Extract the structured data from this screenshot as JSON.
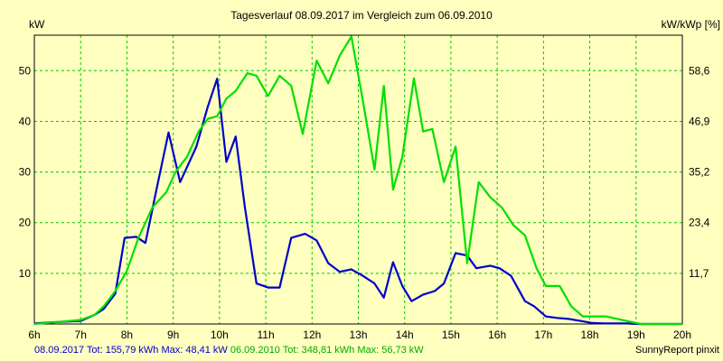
{
  "chart_data": {
    "type": "line",
    "title": "Tagesverlauf 08.09.2017 im Vergleich zum 06.09.2010",
    "left_unit": "kW",
    "right_unit": "kW/kWp [%]",
    "x_ticks": [
      "6h",
      "7h",
      "8h",
      "9h",
      "10h",
      "11h",
      "12h",
      "13h",
      "14h",
      "15h",
      "16h",
      "17h",
      "18h",
      "19h",
      "20h"
    ],
    "y_left_ticks": [
      10,
      20,
      30,
      40,
      50
    ],
    "y_right_ticks": [
      "11,7",
      "23,4",
      "35,2",
      "46,9",
      "58,6"
    ],
    "x_range": [
      6,
      20
    ],
    "y_range": [
      0,
      57
    ],
    "grid": true,
    "series": [
      {
        "name": "08.09.2017",
        "color": "#0000cc",
        "x": [
          6,
          6.5,
          7,
          7.3,
          7.5,
          7.75,
          7.95,
          8.2,
          8.4,
          8.65,
          8.9,
          9.15,
          9.5,
          9.75,
          9.95,
          10.15,
          10.35,
          10.55,
          10.8,
          11.05,
          11.3,
          11.55,
          11.85,
          12.1,
          12.35,
          12.6,
          12.85,
          13.1,
          13.35,
          13.55,
          13.75,
          13.95,
          14.15,
          14.4,
          14.65,
          14.85,
          15.1,
          15.35,
          15.55,
          15.85,
          16.05,
          16.3,
          16.6,
          16.8,
          17.05,
          17.3,
          17.55,
          17.8,
          18.05,
          18.3,
          18.55,
          18.8,
          19.05,
          19.3,
          19.55,
          19.8,
          20
        ],
        "values": [
          0.1,
          0.4,
          0.6,
          1.8,
          3,
          6,
          17,
          17.2,
          16,
          27,
          37.8,
          28,
          35,
          43,
          48.41,
          32,
          37,
          23,
          8,
          7.2,
          7.2,
          17,
          17.8,
          16.5,
          12,
          10.3,
          10.8,
          9.5,
          8,
          5.2,
          12.2,
          7.5,
          4.5,
          5.8,
          6.5,
          8,
          14,
          13.5,
          11,
          11.5,
          11,
          9.5,
          4.5,
          3.5,
          1.5,
          1.2,
          1,
          0.6,
          0.2,
          0.1,
          0.1,
          0.1,
          0,
          0,
          0,
          0,
          0
        ]
      },
      {
        "name": "06.09.2010",
        "color": "#00e000",
        "x": [
          6,
          6.5,
          7,
          7.3,
          7.5,
          7.75,
          8,
          8.25,
          8.55,
          8.85,
          9.05,
          9.3,
          9.55,
          9.75,
          9.95,
          10.15,
          10.35,
          10.6,
          10.8,
          11.05,
          11.3,
          11.55,
          11.8,
          12.1,
          12.35,
          12.6,
          12.85,
          13.1,
          13.35,
          13.55,
          13.75,
          13.95,
          14.2,
          14.4,
          14.6,
          14.85,
          15.1,
          15.35,
          15.6,
          15.85,
          16.1,
          16.35,
          16.6,
          16.85,
          17.05,
          17.35,
          17.6,
          17.85,
          18.1,
          18.35,
          18.6,
          18.85,
          19.1,
          19.35,
          19.6,
          19.85,
          20
        ],
        "values": [
          0,
          0.4,
          0.8,
          1.8,
          3.5,
          6.5,
          10.5,
          17,
          23,
          26,
          30,
          33,
          38,
          40.5,
          41,
          44.5,
          46,
          49.5,
          49,
          45,
          49,
          47,
          37.5,
          52,
          47.5,
          53,
          56.73,
          44,
          30.5,
          47,
          26.5,
          33,
          48.5,
          38,
          38.5,
          28,
          35,
          12,
          28,
          25,
          23,
          19.5,
          17.5,
          11,
          7.5,
          7.5,
          3.5,
          1.5,
          1.5,
          1.5,
          1,
          0.5,
          0,
          0,
          0,
          0,
          0
        ]
      }
    ]
  },
  "footer": {
    "series1_stats": "08.09.2017 Tot: 155,79 kWh Max: 48,41 kW",
    "series2_stats": "06.09.2010 Tot: 348,81 kWh Max: 56,73 kW",
    "credit": "SunnyReport pinxit"
  },
  "colors": {
    "background": "#ffffc0",
    "grid": "#00cc00",
    "series1": "#0000cc",
    "series2": "#00e000",
    "footer_text1": "#0000cc",
    "footer_text2": "#00aa00"
  }
}
